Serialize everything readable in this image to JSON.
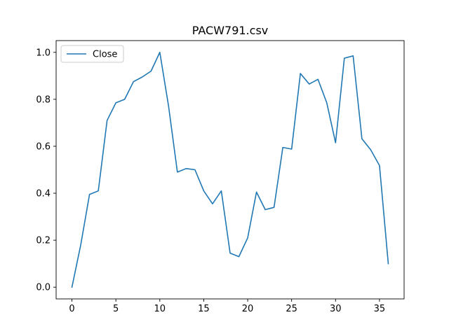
{
  "chart_data": {
    "type": "line",
    "title": "PACW791.csv",
    "xlabel": "",
    "ylabel": "",
    "xlim": [
      -1.8,
      37.8
    ],
    "ylim": [
      -0.05,
      1.05
    ],
    "x_ticks": [
      0,
      5,
      10,
      15,
      20,
      25,
      30,
      35
    ],
    "x_tick_labels": [
      "0",
      "5",
      "10",
      "15",
      "20",
      "25",
      "30",
      "35"
    ],
    "y_ticks": [
      0.0,
      0.2,
      0.4,
      0.6,
      0.8,
      1.0
    ],
    "y_tick_labels": [
      "0.0",
      "0.2",
      "0.4",
      "0.6",
      "0.8",
      "1.0"
    ],
    "grid": false,
    "legend": {
      "placement": "upper-left",
      "entries": [
        "Close"
      ]
    },
    "series": [
      {
        "name": "Close",
        "color": "#1f77b4",
        "x": [
          0,
          1,
          2,
          3,
          4,
          5,
          6,
          7,
          8,
          9,
          10,
          11,
          12,
          13,
          14,
          15,
          16,
          17,
          18,
          19,
          20,
          21,
          22,
          23,
          24,
          25,
          26,
          27,
          28,
          29,
          30,
          31,
          32,
          33,
          34,
          35,
          36
        ],
        "values": [
          0.0,
          0.18,
          0.395,
          0.41,
          0.71,
          0.785,
          0.8,
          0.875,
          0.895,
          0.92,
          1.0,
          0.77,
          0.49,
          0.505,
          0.5,
          0.41,
          0.355,
          0.41,
          0.145,
          0.13,
          0.21,
          0.405,
          0.33,
          0.34,
          0.595,
          0.588,
          0.91,
          0.865,
          0.885,
          0.785,
          0.615,
          0.975,
          0.985,
          0.632,
          0.585,
          0.518,
          0.1
        ]
      }
    ]
  }
}
